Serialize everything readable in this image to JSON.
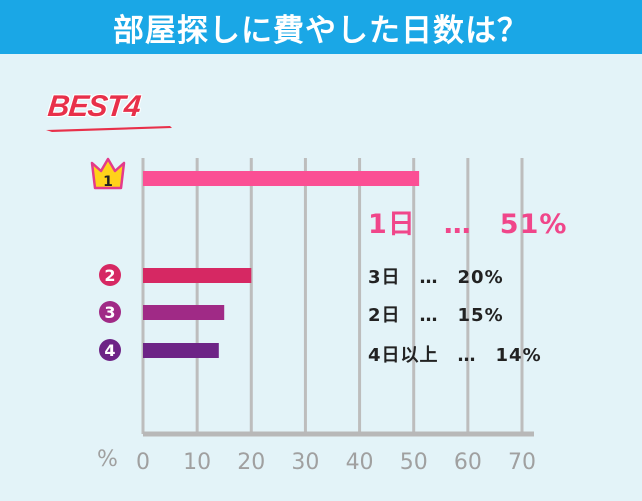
{
  "header": {
    "title": "部屋探しに費やした日数は？"
  },
  "badge": {
    "text": "BEST4"
  },
  "ranks": [
    "1",
    "2",
    "3",
    "4"
  ],
  "labels": {
    "r1": "1日　…　51%",
    "r2": "3日　…　20%",
    "r3": "2日　…　15%",
    "r4": "4日以上　…　14%"
  },
  "axis_unit": "%",
  "colors": {
    "r1": "#fb4f94",
    "r2": "#d62863",
    "r3": "#a02a86",
    "r4": "#6d2486",
    "header": "#1aa7e6",
    "background": "#e3f3f8",
    "crown": "#ffd21a"
  },
  "chart_data": {
    "type": "bar",
    "orientation": "horizontal",
    "title": "部屋探しに費やした日数は？",
    "categories": [
      "1日",
      "3日",
      "2日",
      "4日以上"
    ],
    "values": [
      51,
      20,
      15,
      14
    ],
    "xlim": [
      0,
      70
    ],
    "xticks": [
      0,
      10,
      20,
      30,
      40,
      50,
      60,
      70
    ],
    "xlabel": "%",
    "grid": true
  }
}
